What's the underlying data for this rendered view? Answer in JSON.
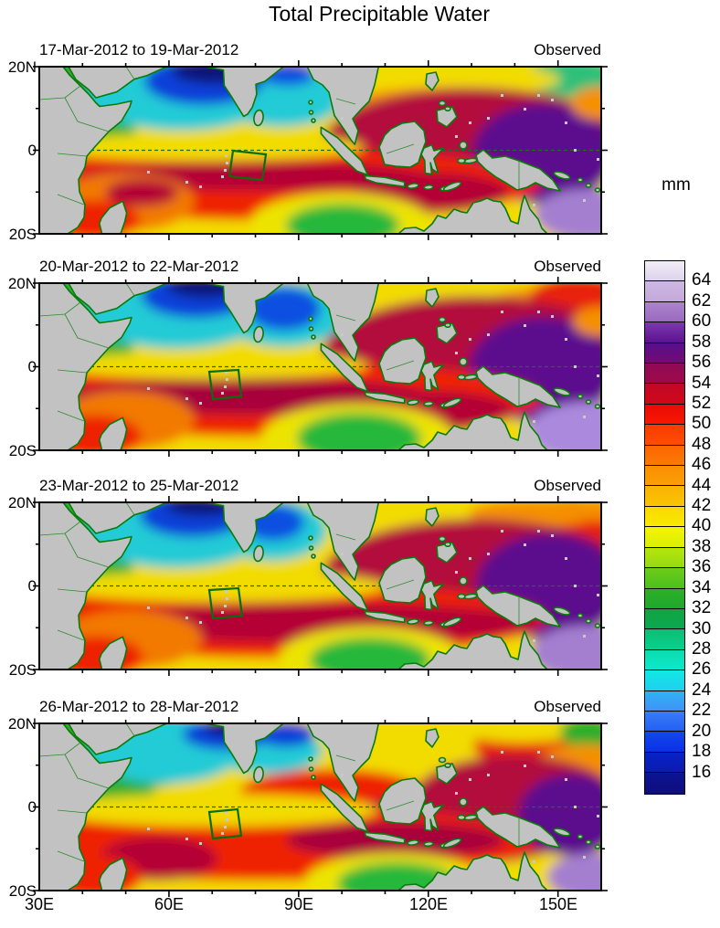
{
  "title": "Total Precipitable Water",
  "panels": [
    {
      "date_range": "17-Mar-2012 to 19-Mar-2012",
      "source_label": "Observed"
    },
    {
      "date_range": "20-Mar-2012 to 22-Mar-2012",
      "source_label": "Observed"
    },
    {
      "date_range": "23-Mar-2012 to 25-Mar-2012",
      "source_label": "Observed"
    },
    {
      "date_range": "26-Mar-2012 to 28-Mar-2012",
      "source_label": "Observed"
    }
  ],
  "axes": {
    "lat_ticks": [
      "20N",
      "0",
      "20S"
    ],
    "lon_ticks": [
      "30E",
      "60E",
      "90E",
      "120E",
      "150E"
    ]
  },
  "colorbar": {
    "title": "mm",
    "tick_labels": [
      64,
      62,
      60,
      58,
      56,
      54,
      52,
      50,
      48,
      46,
      44,
      42,
      40,
      38,
      36,
      34,
      32,
      30,
      28,
      26,
      24,
      22,
      20,
      18,
      16
    ],
    "cells": [
      {
        "range": "64-66",
        "c1": "#f3eff8",
        "c2": "#ddd2ec"
      },
      {
        "range": "62-64",
        "c1": "#cdb8e2",
        "c2": "#c3a8da"
      },
      {
        "range": "60-62",
        "c1": "#ab84cb",
        "c2": "#9a6abf"
      },
      {
        "range": "58-60",
        "c1": "#7b3aa8",
        "c2": "#5c1196"
      },
      {
        "range": "56-58",
        "c1": "#560f8e",
        "c2": "#750b72"
      },
      {
        "range": "54-56",
        "c1": "#8f0a56",
        "c2": "#a00948"
      },
      {
        "range": "52-54",
        "c1": "#c00829",
        "c2": "#d20718"
      },
      {
        "range": "50-52",
        "c1": "#ea0a07",
        "c2": "#f81800"
      },
      {
        "range": "48-50",
        "c1": "#fb3a00",
        "c2": "#fb4f00"
      },
      {
        "range": "46-48",
        "c1": "#fb6602",
        "c2": "#fb7a03"
      },
      {
        "range": "44-46",
        "c1": "#fb8e03",
        "c2": "#faa004"
      },
      {
        "range": "42-44",
        "c1": "#fab303",
        "c2": "#fac403"
      },
      {
        "range": "40-42",
        "c1": "#f9d801",
        "c2": "#f9ea00"
      },
      {
        "range": "38-40",
        "c1": "#f4f500",
        "c2": "#d9ef04"
      },
      {
        "range": "36-38",
        "c1": "#b7e50b",
        "c2": "#95da12"
      },
      {
        "range": "34-36",
        "c1": "#6ecc19",
        "c2": "#4cc01e"
      },
      {
        "range": "32-34",
        "c1": "#2eb026",
        "c2": "#1ea82e"
      },
      {
        "range": "30-32",
        "c1": "#12a440",
        "c2": "#0ba852"
      },
      {
        "range": "28-30",
        "c1": "#0abf72",
        "c2": "#0bcf8e"
      },
      {
        "range": "26-28",
        "c1": "#0cdcae",
        "c2": "#0de8cb"
      },
      {
        "range": "24-26",
        "c1": "#12e8e4",
        "c2": "#1ed0ee"
      },
      {
        "range": "22-24",
        "c1": "#2fb2f4",
        "c2": "#3f93f6"
      },
      {
        "range": "20-22",
        "c1": "#3a7cf6",
        "c2": "#2361f4"
      },
      {
        "range": "18-20",
        "c1": "#1348ee",
        "c2": "#0a32e2"
      },
      {
        "range": "16-18",
        "c1": "#0823c8",
        "c2": "#0a1bb0"
      },
      {
        "range": "14-16",
        "c1": "#0d1394",
        "c2": "#0e0f7a"
      }
    ]
  },
  "map_colors": {
    "land": "#c2c2c2",
    "coastline": "#0a7a0a",
    "study_box": "#0a6e0a",
    "equator_line": "#1c6e1c"
  },
  "chart_data": {
    "type": "heatmap",
    "title": "Total Precipitable Water",
    "units": "mm",
    "lon_range": [
      30,
      160
    ],
    "lat_range": [
      -20,
      20
    ],
    "lon_tick_values": [
      30,
      60,
      90,
      120,
      150
    ],
    "lat_tick_values": [
      20,
      0,
      -20
    ],
    "contour_levels": {
      "min": 14,
      "max": 66,
      "interval": 2,
      "labeled_every": 2
    },
    "legend_position": "right vertical colorbar labeled 16-64 mm",
    "panels": [
      {
        "period": "17-Mar-2012 to 19-Mar-2012",
        "source": "Observed",
        "features": "Very dry air (<20 mm, dark blue/navy) over northern Arabian Sea; cyan 24-30 mm around India and Bay of Bengal; yellow 38-44 mm band just north of equator; moist red band 50-54 mm south of equator across Indian Ocean with crimson 54-58 mm streaks; very moist purple >58 mm east of 130E near New Guinea; cyan-green patch in far NE corner; light lavender >60 mm in SE corner"
      },
      {
        "period": "20-Mar-2012 to 22-Mar-2012",
        "source": "Observed",
        "features": "Dry blue core over NW Arabian Sea plus distinct blue patch in central Bay of Bengal; red band south of equator; green 32-36 mm patch near 95-105E, 15-20S; extensive maroon/purple 54-62 mm region over Maritime Continent and western Pacific; lavender SE corner"
      },
      {
        "period": "23-Mar-2012 to 25-Mar-2012",
        "source": "Observed",
        "features": "Dry air over Arabian Sea and western Bay of Bengal; yellow 38-42 mm across equatorial western Indian Ocean; broad crimson 52-58 mm band 5S-12S extending east; purple >58 mm from 125E eastward south of equator; red in NE corner"
      },
      {
        "period": "26-Mar-2012 to 28-Mar-2012",
        "source": "Observed",
        "features": "Dry blue patch shifted east over central Arabian Sea and SW Bay of Bengal; larger green/cyan area in NW; moist red-crimson band around and east of the green study box; maroon patches 95-125E south of equator; purple area reduced, confined near 140-160E; green patch far NE corner"
      }
    ],
    "study_box": "dark green outlined quadrilateral over the central equatorial Indian Ocean (about 70-82E, 0-8S) in every panel",
    "equator": "dashed dark-green line at latitude 0 in every panel"
  }
}
